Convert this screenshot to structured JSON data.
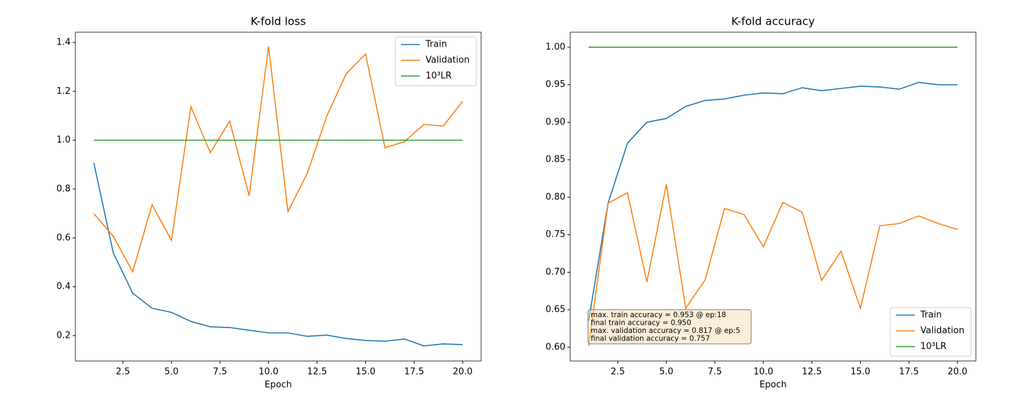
{
  "chart_data": [
    {
      "type": "line",
      "title": "K-fold loss",
      "xlabel": "Epoch",
      "x": [
        1,
        2,
        3,
        4,
        5,
        6,
        7,
        8,
        9,
        10,
        11,
        12,
        13,
        14,
        15,
        16,
        17,
        18,
        19,
        20
      ],
      "series": [
        {
          "name": "Train",
          "color": "#1f77b4",
          "values": [
            0.907,
            0.539,
            0.374,
            0.312,
            0.295,
            0.258,
            0.236,
            0.233,
            0.222,
            0.211,
            0.211,
            0.197,
            0.202,
            0.188,
            0.18,
            0.177,
            0.186,
            0.158,
            0.166,
            0.163
          ]
        },
        {
          "name": "Validation",
          "color": "#ff7f0e",
          "values": [
            0.699,
            0.607,
            0.461,
            0.736,
            0.59,
            1.137,
            0.949,
            1.078,
            0.772,
            1.383,
            0.708,
            0.865,
            1.098,
            1.272,
            1.353,
            0.969,
            0.994,
            1.064,
            1.058,
            1.159
          ]
        },
        {
          "name": "10³LR",
          "color": "#2ca02c",
          "values": [
            1,
            1,
            1,
            1,
            1,
            1,
            1,
            1,
            1,
            1,
            1,
            1,
            1,
            1,
            1,
            1,
            1,
            1,
            1,
            1
          ]
        }
      ],
      "xlim": [
        0.05,
        20.95
      ],
      "xticks": [
        2.5,
        {
          "value": 5,
          "label": "5.0"
        },
        7.5,
        {
          "value": 10,
          "label": "10.0"
        },
        12.5,
        {
          "value": 15,
          "label": "15.0"
        },
        17.5,
        {
          "value": 20,
          "label": "20.0"
        }
      ],
      "ylim": [
        0.096,
        1.442
      ],
      "yticks": [
        0.2,
        0.4,
        0.6,
        0.8,
        {
          "value": 1,
          "label": "1.0"
        },
        1.2,
        1.4
      ],
      "legend": "upper right"
    },
    {
      "type": "line",
      "title": "K-fold accuracy",
      "xlabel": "Epoch",
      "x": [
        1,
        2,
        3,
        4,
        5,
        6,
        7,
        8,
        9,
        10,
        11,
        12,
        13,
        14,
        15,
        16,
        17,
        18,
        19,
        20
      ],
      "series": [
        {
          "name": "Train",
          "color": "#1f77b4",
          "values": [
            0.635,
            0.792,
            0.872,
            0.9,
            0.905,
            0.921,
            0.929,
            0.931,
            0.936,
            0.939,
            0.938,
            0.946,
            0.942,
            0.945,
            0.948,
            0.947,
            0.944,
            0.953,
            0.95,
            0.95
          ]
        },
        {
          "name": "Validation",
          "color": "#ff7f0e",
          "values": [
            0.602,
            0.792,
            0.806,
            0.687,
            0.817,
            0.652,
            0.69,
            0.785,
            0.777,
            0.734,
            0.793,
            0.78,
            0.689,
            0.728,
            0.652,
            0.762,
            0.765,
            0.775,
            0.765,
            0.757
          ]
        },
        {
          "name": "10³LR",
          "color": "#2ca02c",
          "values": [
            1,
            1,
            1,
            1,
            1,
            1,
            1,
            1,
            1,
            1,
            1,
            1,
            1,
            1,
            1,
            1,
            1,
            1,
            1,
            1
          ]
        }
      ],
      "xlim": [
        0.05,
        20.95
      ],
      "xticks": [
        2.5,
        {
          "value": 5,
          "label": "5.0"
        },
        7.5,
        {
          "value": 10,
          "label": "10.0"
        },
        12.5,
        {
          "value": 15,
          "label": "15.0"
        },
        17.5,
        {
          "value": 20,
          "label": "20.0"
        }
      ],
      "ylim": [
        0.5817,
        1.02
      ],
      "yticks": [
        {
          "value": 0.6,
          "label": "0.60"
        },
        0.65,
        {
          "value": 0.7,
          "label": "0.70"
        },
        0.75,
        {
          "value": 0.8,
          "label": "0.80"
        },
        0.85,
        {
          "value": 0.9,
          "label": "0.90"
        },
        0.95,
        {
          "value": 1,
          "label": "1.00"
        }
      ],
      "legend": "lower right",
      "annotations": [
        "max. train accuracy = 0.953 @ ep:18",
        "final train accuracy = 0.950",
        "max. validation accuracy = 0.817 @ ep:5",
        "final validation accuracy = 0.757"
      ]
    }
  ]
}
